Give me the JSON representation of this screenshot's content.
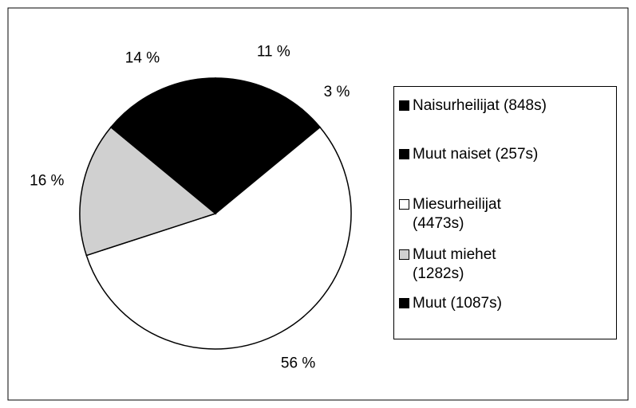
{
  "chart_data": {
    "type": "pie",
    "categories": [
      "Naisurheilijat (848s)",
      "Muut naiset (257s)",
      "Miesurheilijat (4473s)",
      "Muut miehet (1282s)",
      "Muut (1087s)"
    ],
    "values": [
      11,
      3,
      56,
      16,
      14
    ],
    "value_labels": [
      "11 %",
      "3 %",
      "56 %",
      "16 %",
      "14 %"
    ],
    "colors": [
      "#000000",
      "#000000",
      "#ffffff",
      "#d0d0d0",
      "#000000"
    ],
    "legend": "right"
  }
}
